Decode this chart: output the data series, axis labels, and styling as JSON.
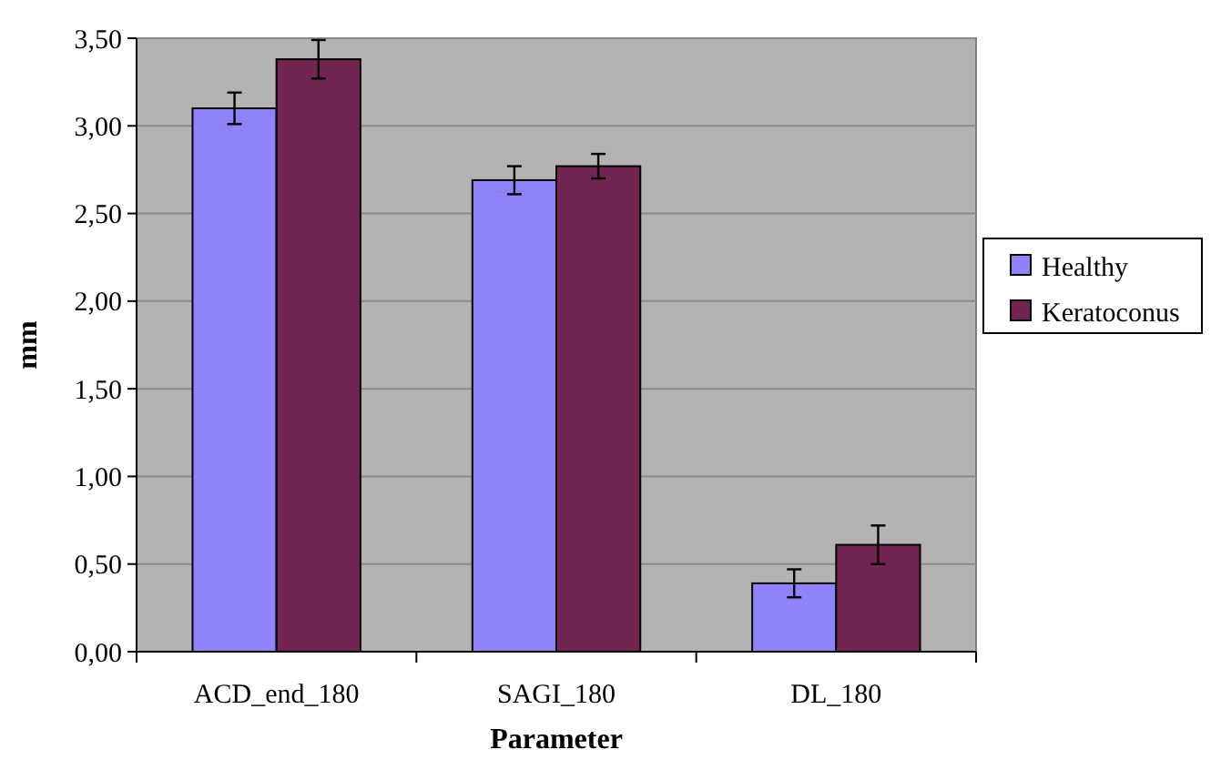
{
  "chart_data": {
    "type": "bar",
    "xlabel": "Parameter",
    "ylabel": "mm",
    "categories": [
      "ACD_end_180",
      "SAGI_180",
      "DL_180"
    ],
    "series": [
      {
        "name": "Healthy",
        "color": "#8f83fb",
        "values": [
          3.1,
          2.69,
          0.39
        ],
        "errors": [
          0.09,
          0.08,
          0.08
        ]
      },
      {
        "name": "Keratoconus",
        "color": "#722551",
        "values": [
          3.38,
          2.77,
          0.61
        ],
        "errors": [
          0.11,
          0.07,
          0.11
        ]
      }
    ],
    "ylim": [
      0,
      3.5
    ],
    "yticks": [
      {
        "value": 0,
        "label": "0,00"
      },
      {
        "value": 0.5,
        "label": "0,50"
      },
      {
        "value": 1,
        "label": "1,00"
      },
      {
        "value": 1.5,
        "label": "1,50"
      },
      {
        "value": 2,
        "label": "2,00"
      },
      {
        "value": 2.5,
        "label": "2,50"
      },
      {
        "value": 3,
        "label": "3,00"
      },
      {
        "value": 3.5,
        "label": "3,50"
      }
    ],
    "grid": "y",
    "legend": "right"
  }
}
